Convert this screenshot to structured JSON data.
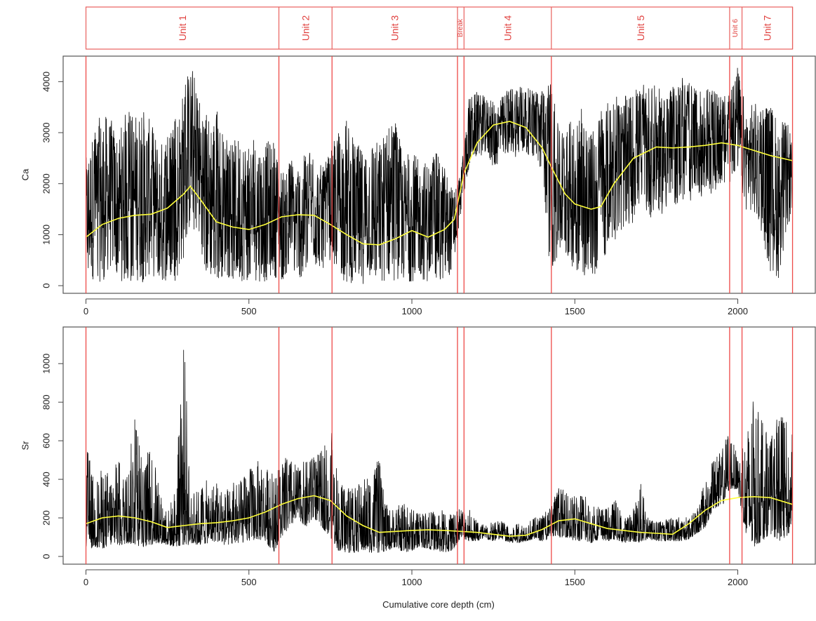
{
  "chart_data": {
    "type": "line",
    "xlabel": "Cumulative core depth (cm)",
    "xlim": [
      -70,
      2240
    ],
    "xticks": [
      0,
      500,
      1000,
      1500,
      2000
    ],
    "units": [
      {
        "label": "Unit 1",
        "start": 0,
        "end": 592
      },
      {
        "label": "Unit 2",
        "start": 592,
        "end": 755
      },
      {
        "label": "Unit 3",
        "start": 755,
        "end": 1140
      },
      {
        "label": "Break",
        "start": 1140,
        "end": 1160
      },
      {
        "label": "Unit 4",
        "start": 1160,
        "end": 1428
      },
      {
        "label": "Unit 5",
        "start": 1428,
        "end": 1975
      },
      {
        "label": "Unit 6",
        "start": 1975,
        "end": 2013
      },
      {
        "label": "Unit 7",
        "start": 2013,
        "end": 2168
      }
    ],
    "boundaries": [
      0,
      592,
      755,
      1140,
      1160,
      1428,
      1975,
      2013,
      2168
    ],
    "panels": [
      {
        "ylabel": "Ca",
        "ylim": [
          -150,
          4500
        ],
        "yticks": [
          0,
          1000,
          2000,
          3000,
          4000
        ],
        "trend": {
          "x": [
            0,
            50,
            100,
            150,
            200,
            250,
            300,
            320,
            350,
            400,
            450,
            500,
            550,
            600,
            650,
            700,
            750,
            800,
            850,
            900,
            950,
            1000,
            1050,
            1100,
            1130,
            1160,
            1200,
            1250,
            1300,
            1350,
            1400,
            1430,
            1470,
            1500,
            1550,
            1580,
            1620,
            1680,
            1750,
            1800,
            1850,
            1900,
            1950,
            2000,
            2050,
            2100,
            2168
          ],
          "y": [
            950,
            1200,
            1320,
            1380,
            1400,
            1520,
            1800,
            1950,
            1700,
            1250,
            1150,
            1100,
            1200,
            1350,
            1390,
            1380,
            1200,
            1000,
            820,
            800,
            920,
            1080,
            950,
            1100,
            1300,
            2200,
            2800,
            3150,
            3220,
            3100,
            2700,
            2300,
            1800,
            1600,
            1500,
            1550,
            2000,
            2500,
            2720,
            2700,
            2720,
            2750,
            2800,
            2750,
            2650,
            2550,
            2450
          ]
        },
        "envelope": {
          "x": [
            0,
            25,
            50,
            75,
            100,
            125,
            150,
            175,
            200,
            225,
            250,
            275,
            300,
            325,
            350,
            375,
            400,
            425,
            450,
            475,
            500,
            525,
            550,
            575,
            600,
            625,
            650,
            675,
            700,
            725,
            750,
            775,
            800,
            825,
            850,
            875,
            900,
            925,
            950,
            975,
            1000,
            1025,
            1050,
            1075,
            1100,
            1125,
            1150,
            1175,
            1200,
            1225,
            1250,
            1275,
            1300,
            1325,
            1350,
            1375,
            1400,
            1425,
            1450,
            1475,
            1500,
            1525,
            1550,
            1575,
            1600,
            1625,
            1650,
            1675,
            1700,
            1725,
            1750,
            1775,
            1800,
            1825,
            1850,
            1875,
            1900,
            1925,
            1950,
            1975,
            2000,
            2025,
            2050,
            2075,
            2100,
            2125,
            2150,
            2168
          ],
          "lo": [
            200,
            100,
            50,
            300,
            100,
            50,
            100,
            50,
            200,
            50,
            80,
            100,
            500,
            1200,
            800,
            50,
            100,
            200,
            50,
            100,
            30,
            100,
            50,
            200,
            50,
            300,
            100,
            200,
            400,
            300,
            500,
            200,
            50,
            40,
            30,
            50,
            40,
            60,
            100,
            50,
            80,
            120,
            50,
            100,
            60,
            300,
            1400,
            2300,
            2500,
            2600,
            2300,
            2400,
            2600,
            2500,
            2600,
            2500,
            2200,
            150,
            600,
            500,
            300,
            150,
            100,
            300,
            700,
            900,
            1100,
            1200,
            1500,
            1300,
            1400,
            1400,
            1500,
            1600,
            1600,
            1700,
            1800,
            1800,
            2000,
            2000,
            2200,
            1500,
            1400,
            1000,
            200,
            150,
            1000,
            1500
          ],
          "hi": [
            2500,
            3100,
            3400,
            3300,
            3000,
            3500,
            3400,
            3500,
            3200,
            2800,
            3000,
            3300,
            3900,
            4350,
            3700,
            3400,
            3500,
            2900,
            2800,
            3000,
            2800,
            2900,
            2800,
            2900,
            2300,
            2500,
            2400,
            2600,
            2700,
            2300,
            2600,
            3100,
            3300,
            2800,
            2700,
            3000,
            2800,
            3200,
            3300,
            2500,
            2700,
            2400,
            2500,
            2600,
            2400,
            1900,
            2200,
            3700,
            3800,
            3700,
            3600,
            3700,
            3900,
            4000,
            3900,
            3800,
            3900,
            4050,
            3100,
            3200,
            3300,
            3500,
            3000,
            3400,
            3600,
            3700,
            3700,
            3800,
            3900,
            4000,
            3900,
            3800,
            3900,
            4150,
            4000,
            3800,
            3900,
            3900,
            3700,
            3800,
            4330,
            3500,
            3600,
            3500,
            3600,
            3300,
            3200,
            3000
          ]
        }
      },
      {
        "ylabel": "Sr",
        "ylim": [
          -40,
          1190
        ],
        "yticks": [
          0,
          200,
          400,
          600,
          800,
          1000
        ],
        "trend": {
          "x": [
            0,
            50,
            100,
            150,
            200,
            250,
            300,
            350,
            400,
            450,
            500,
            550,
            600,
            650,
            700,
            750,
            800,
            850,
            900,
            950,
            1000,
            1050,
            1100,
            1150,
            1200,
            1250,
            1300,
            1350,
            1400,
            1450,
            1500,
            1550,
            1600,
            1650,
            1700,
            1750,
            1800,
            1850,
            1900,
            1950,
            2000,
            2050,
            2100,
            2168
          ],
          "y": [
            170,
            200,
            210,
            200,
            180,
            150,
            160,
            170,
            175,
            185,
            200,
            230,
            270,
            300,
            315,
            290,
            210,
            160,
            125,
            130,
            135,
            138,
            135,
            130,
            125,
            115,
            105,
            110,
            140,
            185,
            195,
            170,
            145,
            135,
            125,
            120,
            115,
            170,
            240,
            290,
            305,
            310,
            305,
            270
          ]
        },
        "envelope": {
          "x": [
            0,
            25,
            50,
            75,
            100,
            125,
            150,
            175,
            200,
            225,
            250,
            275,
            300,
            325,
            350,
            375,
            400,
            425,
            450,
            475,
            500,
            525,
            550,
            575,
            600,
            625,
            650,
            675,
            700,
            725,
            750,
            775,
            800,
            825,
            850,
            875,
            900,
            925,
            950,
            975,
            1000,
            1025,
            1050,
            1075,
            1100,
            1125,
            1150,
            1175,
            1200,
            1225,
            1250,
            1275,
            1300,
            1325,
            1350,
            1375,
            1400,
            1425,
            1450,
            1475,
            1500,
            1525,
            1550,
            1575,
            1600,
            1625,
            1650,
            1675,
            1700,
            1725,
            1750,
            1775,
            1800,
            1825,
            1850,
            1875,
            1900,
            1925,
            1950,
            1975,
            2000,
            2025,
            2050,
            2075,
            2100,
            2125,
            2150,
            2168
          ],
          "lo": [
            30,
            50,
            40,
            60,
            50,
            70,
            60,
            50,
            60,
            70,
            60,
            50,
            60,
            60,
            60,
            70,
            80,
            60,
            60,
            70,
            80,
            90,
            80,
            20,
            100,
            150,
            200,
            150,
            200,
            150,
            100,
            30,
            20,
            20,
            30,
            20,
            20,
            30,
            50,
            20,
            30,
            50,
            40,
            30,
            20,
            30,
            100,
            80,
            80,
            90,
            80,
            90,
            70,
            70,
            80,
            90,
            80,
            90,
            100,
            100,
            80,
            80,
            70,
            90,
            80,
            90,
            70,
            80,
            70,
            90,
            80,
            80,
            80,
            80,
            90,
            120,
            150,
            250,
            250,
            350,
            350,
            100,
            50,
            80,
            120,
            80,
            100,
            150
          ],
          "hi": [
            620,
            390,
            460,
            450,
            500,
            420,
            740,
            460,
            610,
            350,
            230,
            370,
            1150,
            310,
            370,
            400,
            390,
            340,
            380,
            400,
            450,
            500,
            480,
            420,
            500,
            520,
            470,
            500,
            520,
            550,
            690,
            400,
            380,
            360,
            400,
            480,
            500,
            250,
            260,
            280,
            250,
            220,
            230,
            240,
            250,
            220,
            260,
            250,
            180,
            170,
            180,
            190,
            150,
            170,
            180,
            200,
            210,
            260,
            360,
            340,
            320,
            330,
            270,
            260,
            250,
            300,
            200,
            220,
            400,
            200,
            180,
            190,
            200,
            210,
            200,
            250,
            400,
            500,
            550,
            690,
            500,
            650,
            840,
            700,
            600,
            750,
            700,
            650
          ]
        }
      }
    ]
  }
}
